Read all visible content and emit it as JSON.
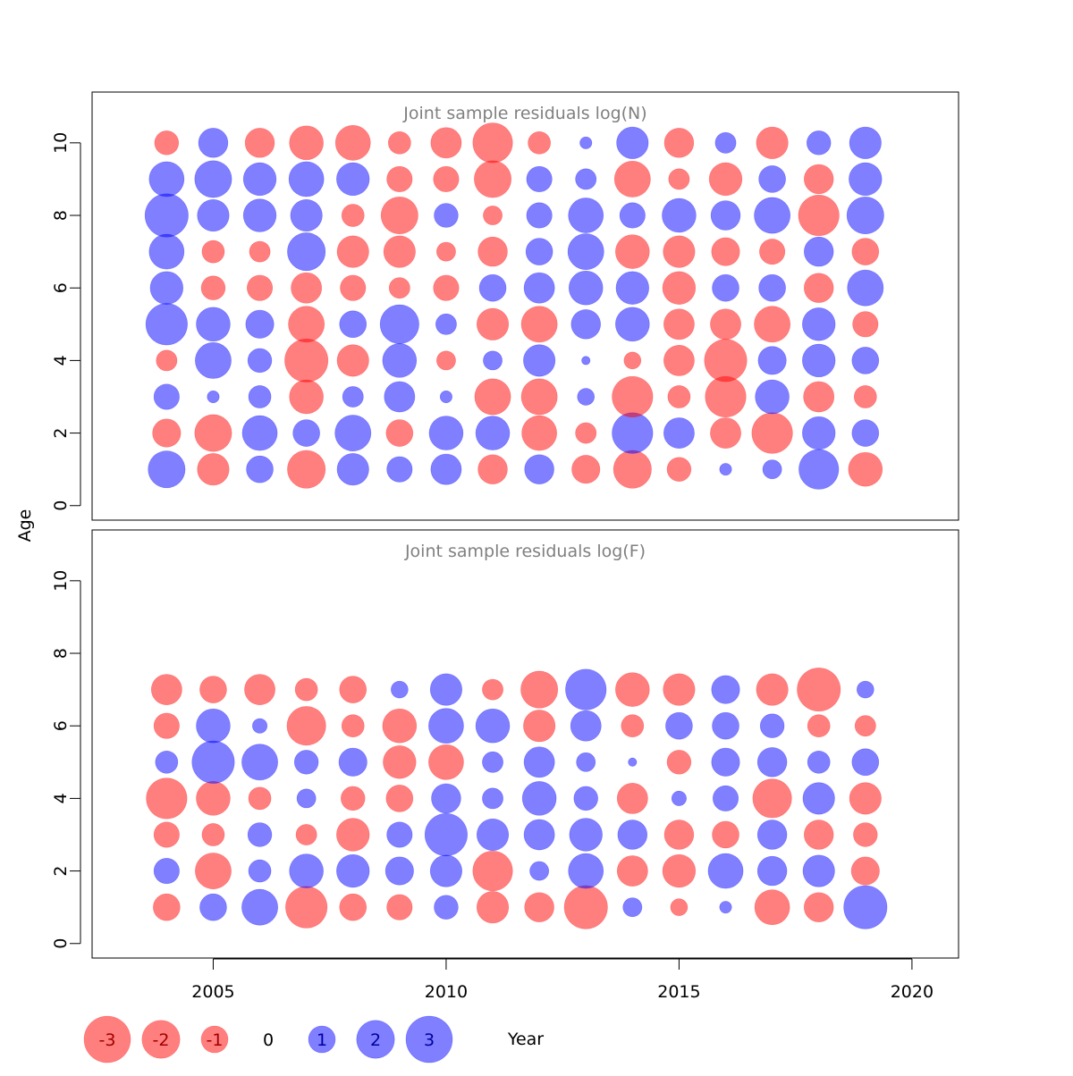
{
  "colors": {
    "negative": "#ff0000",
    "positive": "#0000ff",
    "fill_opacity": 0.5,
    "panel_title": "#808080",
    "axis": "#000000"
  },
  "labels": {
    "ylabel": "Age",
    "xlabel": "Year"
  },
  "legend": {
    "placement": "bottom",
    "entries": [
      {
        "value": -3,
        "label": "-3"
      },
      {
        "value": -2,
        "label": "-2"
      },
      {
        "value": -1,
        "label": "-1"
      },
      {
        "value": 0,
        "label": "0"
      },
      {
        "value": 1,
        "label": "1"
      },
      {
        "value": 2,
        "label": "2"
      },
      {
        "value": 3,
        "label": "3"
      }
    ]
  },
  "chart_data": [
    {
      "type": "bubble",
      "title": "Joint sample residuals log(N)",
      "xlabel": "Year",
      "ylabel": "Age",
      "xlim": [
        2002.4,
        2021.0
      ],
      "ylim": [
        -0.4,
        11.4
      ],
      "xticks": [
        2005,
        2010,
        2015,
        2020
      ],
      "yticks": [
        0,
        2,
        4,
        6,
        8,
        10
      ],
      "show_xaxis": false,
      "years": [
        2004,
        2005,
        2006,
        2007,
        2008,
        2009,
        2010,
        2011,
        2012,
        2013,
        2014,
        2015,
        2016,
        2017,
        2018,
        2019
      ],
      "ages": [
        1,
        2,
        3,
        4,
        5,
        6,
        7,
        8,
        9,
        10
      ],
      "residuals": [
        [
          1.9,
          -1.4,
          1.0,
          -2.0,
          1.4,
          0.9,
          1.3,
          -1.2,
          1.2,
          -1.1,
          -2.0,
          -0.8,
          0.2,
          0.5,
          2.2,
          -1.6
        ],
        [
          -1.1,
          -1.9,
          1.7,
          1.0,
          1.8,
          -1.0,
          1.6,
          1.6,
          -1.7,
          -0.6,
          2.3,
          1.3,
          -1.3,
          -2.3,
          1.5,
          1.0
        ],
        [
          0.9,
          0.2,
          0.7,
          -1.6,
          0.6,
          1.3,
          0.2,
          -1.8,
          -1.8,
          0.4,
          -2.3,
          -0.7,
          -2.3,
          1.6,
          -1.3,
          -0.7
        ],
        [
          -0.6,
          1.8,
          0.8,
          -2.6,
          -1.4,
          1.6,
          -0.5,
          0.5,
          1.4,
          0.1,
          -0.4,
          -1.3,
          -2.5,
          1.1,
          1.5,
          1.0
        ],
        [
          2.4,
          1.6,
          1.1,
          -1.8,
          1.0,
          2.1,
          0.6,
          -1.4,
          -1.8,
          1.2,
          1.6,
          -1.3,
          -1.3,
          -1.8,
          1.5,
          -0.9
        ],
        [
          1.5,
          -0.8,
          -0.9,
          -1.3,
          -0.9,
          -0.6,
          -0.9,
          1.0,
          1.3,
          1.6,
          1.5,
          -1.5,
          1.0,
          1.0,
          -1.2,
          1.8
        ],
        [
          1.7,
          -0.7,
          -0.6,
          2.0,
          -1.4,
          -1.4,
          -0.5,
          -1.2,
          1.0,
          1.8,
          -1.6,
          -1.4,
          -1.1,
          -0.9,
          1.2,
          -1.0
        ],
        [
          2.6,
          1.4,
          1.5,
          1.4,
          -0.7,
          -1.9,
          0.8,
          -0.5,
          0.9,
          1.7,
          0.9,
          1.6,
          1.2,
          1.8,
          -2.3,
          1.9
        ],
        [
          1.7,
          1.9,
          1.5,
          1.7,
          1.5,
          -0.9,
          -0.9,
          -1.9,
          0.9,
          0.6,
          -1.8,
          -0.6,
          -1.5,
          1.0,
          -1.2,
          1.5
        ],
        [
          -0.8,
          1.2,
          -1.2,
          -1.6,
          -1.7,
          -0.7,
          -1.3,
          -2.2,
          -0.7,
          0.2,
          1.4,
          -1.2,
          0.6,
          -1.4,
          0.8,
          1.4
        ]
      ]
    },
    {
      "type": "bubble",
      "title": "Joint sample residuals log(F)",
      "xlabel": "Year",
      "ylabel": "Age",
      "xlim": [
        2002.4,
        2021.0
      ],
      "ylim": [
        -0.4,
        11.4
      ],
      "xticks": [
        2005,
        2010,
        2015,
        2020
      ],
      "yticks": [
        0,
        2,
        4,
        6,
        8,
        10
      ],
      "show_xaxis": true,
      "years": [
        2004,
        2005,
        2006,
        2007,
        2008,
        2009,
        2010,
        2011,
        2012,
        2013,
        2014,
        2015,
        2016,
        2017,
        2018,
        2019
      ],
      "ages": [
        1,
        2,
        3,
        4,
        5,
        6,
        7
      ],
      "residuals": [
        [
          -1.0,
          1.0,
          1.8,
          -2.4,
          -1.0,
          -0.9,
          0.8,
          -1.4,
          -1.2,
          -2.6,
          0.5,
          -0.4,
          0.2,
          -1.7,
          -1.2,
          2.6
        ],
        [
          0.9,
          -1.8,
          0.7,
          1.6,
          1.5,
          1.1,
          1.4,
          -2.2,
          0.5,
          1.7,
          -1.3,
          -1.5,
          1.7,
          1.2,
          1.4,
          -1.1
        ],
        [
          -0.9,
          -0.7,
          0.8,
          -0.6,
          -1.5,
          0.9,
          2.5,
          1.4,
          1.3,
          1.5,
          1.2,
          -1.2,
          -1.0,
          1.2,
          -1.2,
          -0.8
        ],
        [
          -2.3,
          -1.6,
          -0.7,
          0.5,
          -0.8,
          -1.0,
          1.2,
          0.6,
          1.6,
          0.8,
          -1.3,
          0.3,
          0.9,
          -2.1,
          1.4,
          -1.4
        ],
        [
          0.7,
          2.5,
          1.8,
          0.8,
          1.1,
          -1.5,
          -1.7,
          0.6,
          1.3,
          0.5,
          0.1,
          -0.8,
          1.1,
          1.2,
          0.7,
          1.0
        ],
        [
          -0.9,
          1.6,
          0.3,
          -2.1,
          -0.7,
          -1.6,
          1.7,
          1.6,
          -1.4,
          1.3,
          -0.7,
          1.0,
          1.0,
          0.8,
          -0.7,
          -0.6
        ],
        [
          -1.3,
          -1.0,
          -1.3,
          -0.7,
          -1.0,
          0.4,
          1.4,
          -0.6,
          -1.9,
          2.3,
          -1.6,
          -1.4,
          1.1,
          -1.4,
          -2.6,
          0.4
        ]
      ]
    }
  ]
}
